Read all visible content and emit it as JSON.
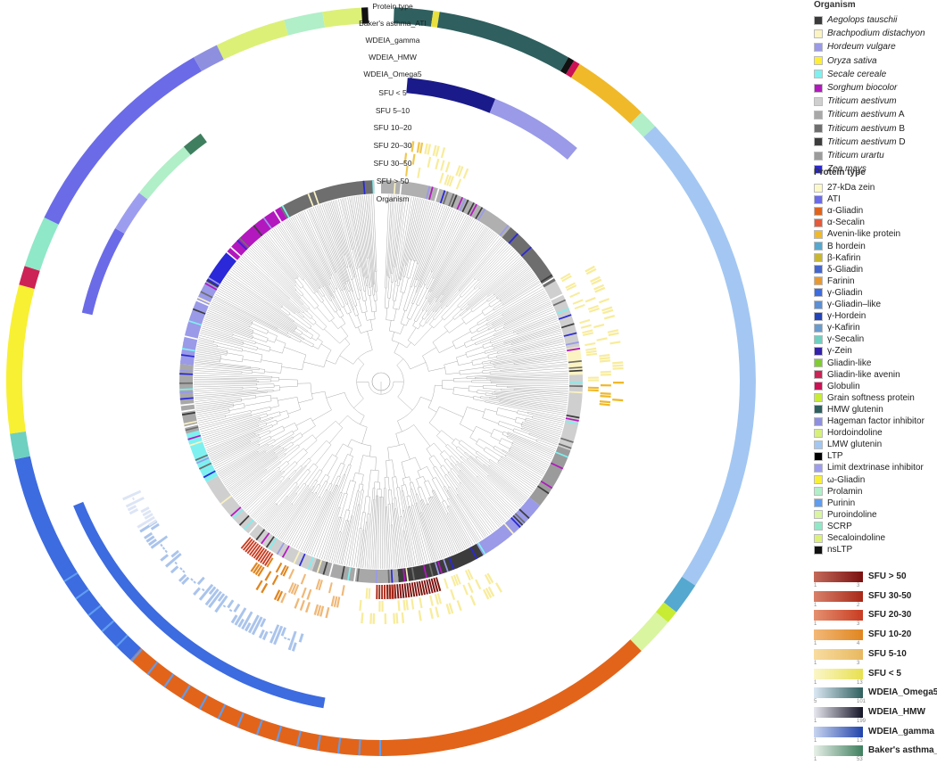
{
  "track_labels": [
    "Protein type",
    "Baker's asthma_ATI",
    "WDEIA_gamma",
    "WDEIA_HMW",
    "WDEIA_Omega5",
    "SFU < 5",
    "SFU 5–10",
    "SFU 10–20",
    "SFU 20–30",
    "SFU 30–50",
    "SFU > 50",
    "Organism"
  ],
  "legend": {
    "organism_title": "Organism",
    "organism": [
      {
        "name": "Aegolops tauschii",
        "suffix": "",
        "color": "#3a3a3a"
      },
      {
        "name": "Brachpodium distachyon",
        "suffix": "",
        "color": "#fbf3c2"
      },
      {
        "name": "Hordeum vulgare",
        "suffix": "",
        "color": "#9a9ae8"
      },
      {
        "name": "Oryza sativa",
        "suffix": "",
        "color": "#ffee33"
      },
      {
        "name": "Secale cereale",
        "suffix": "",
        "color": "#7ff0f0"
      },
      {
        "name": "Sorghum biocolor",
        "suffix": "",
        "color": "#b318bf"
      },
      {
        "name": "Triticum aestivum",
        "suffix": "",
        "color": "#cfcfcf"
      },
      {
        "name": "Triticum aestivum",
        "suffix": " A",
        "color": "#a8a8a8"
      },
      {
        "name": "Triticum aestivum",
        "suffix": " B",
        "color": "#6e6e6e"
      },
      {
        "name": "Triticum aestivum",
        "suffix": " D",
        "color": "#3c3c3c"
      },
      {
        "name": "Triticum urartu",
        "suffix": "",
        "color": "#9b9b9b"
      },
      {
        "name": "Zea mays",
        "suffix": "",
        "color": "#2a28d8"
      }
    ],
    "protein_title": "Protein type",
    "protein": [
      {
        "name": "27-kDa zein",
        "color": "#fcf9c8"
      },
      {
        "name": "ATI",
        "color": "#6b6be8"
      },
      {
        "name": "α-Gliadin",
        "color": "#e2641a"
      },
      {
        "name": "α-Secalin",
        "color": "#e55a3a"
      },
      {
        "name": "Avenin-like protein",
        "color": "#f0b929"
      },
      {
        "name": "B hordein",
        "color": "#55a8cf"
      },
      {
        "name": "β-Kafirin",
        "color": "#c9b730"
      },
      {
        "name": "δ-Gliadin",
        "color": "#4466cc"
      },
      {
        "name": "Farinin",
        "color": "#e89830"
      },
      {
        "name": "γ-Gliadin",
        "color": "#3d6be0"
      },
      {
        "name": "γ-Gliadin–like",
        "color": "#5b8fd6"
      },
      {
        "name": "γ-Hordein",
        "color": "#2244bb"
      },
      {
        "name": "γ-Kafirin",
        "color": "#6a9bcf"
      },
      {
        "name": "γ-Secalin",
        "color": "#6ed0c0"
      },
      {
        "name": "γ-Zein",
        "color": "#3322aa"
      },
      {
        "name": "Gliadin-like",
        "color": "#7fcc33"
      },
      {
        "name": "Gliadin-like avenin",
        "color": "#cc2255"
      },
      {
        "name": "Globulin",
        "color": "#cc1155"
      },
      {
        "name": "Grain softness protein",
        "color": "#c8ec33"
      },
      {
        "name": "HMW glutenin",
        "color": "#2f5f5f"
      },
      {
        "name": "Hageman factor inhibitor",
        "color": "#8f8fe0"
      },
      {
        "name": "Hordoindoline",
        "color": "#d6f07a"
      },
      {
        "name": "LMW glutenin",
        "color": "#a3c7f2"
      },
      {
        "name": "LTP",
        "color": "#000000"
      },
      {
        "name": "Limit dextrinase inhibitor",
        "color": "#9d9df0"
      },
      {
        "name": "ω-Gliadin",
        "color": "#f8f033"
      },
      {
        "name": "Prolamin",
        "color": "#b0efc8"
      },
      {
        "name": "Purinin",
        "color": "#5f9df0"
      },
      {
        "name": "Puroindoline",
        "color": "#d9f5a0"
      },
      {
        "name": "SCRP",
        "color": "#8fe8c8"
      },
      {
        "name": "Secaloindoline",
        "color": "#dcf078"
      },
      {
        "name": "nsLTP",
        "color": "#111111"
      }
    ],
    "gradients": [
      {
        "label": "SFU > 50",
        "from": "#c46a5a",
        "to": "#7a1010",
        "min": "1",
        "max": "3"
      },
      {
        "label": "SFU 30-50",
        "from": "#d8806a",
        "to": "#a82818",
        "min": "1",
        "max": "2"
      },
      {
        "label": "SFU 20-30",
        "from": "#e49070",
        "to": "#c83c22",
        "min": "1",
        "max": "3"
      },
      {
        "label": "SFU 10-20",
        "from": "#f2b878",
        "to": "#e08620",
        "min": "1",
        "max": "4"
      },
      {
        "label": "SFU 5-10",
        "from": "#f8dca0",
        "to": "#e8b860",
        "min": "1",
        "max": "3"
      },
      {
        "label": "SFU < 5",
        "from": "#fbf6c8",
        "to": "#e8e050",
        "min": "1",
        "max": "13"
      },
      {
        "label": "WDEIA_Omega5",
        "from": "#dce8f4",
        "to": "#2f5f5f",
        "min": "5",
        "max": "101"
      },
      {
        "label": "WDEIA_HMW",
        "from": "#e8e8f0",
        "to": "#141428",
        "min": "1",
        "max": "199"
      },
      {
        "label": "WDEIA_gamma",
        "from": "#c8d4f0",
        "to": "#2244aa",
        "min": "1",
        "max": "13"
      },
      {
        "label": "Baker's asthma_ATI",
        "from": "#e8f0e8",
        "to": "#3f7f5f",
        "min": "1",
        "max": "53"
      }
    ]
  },
  "rings": {
    "protein_outer": [
      {
        "from": 2,
        "to": 8,
        "color": "#2f5f5f"
      },
      {
        "from": 8,
        "to": 9,
        "color": "#e8e040"
      },
      {
        "from": 9,
        "to": 30,
        "color": "#2f5f5f"
      },
      {
        "from": 30,
        "to": 31,
        "color": "#111111"
      },
      {
        "from": 31,
        "to": 32,
        "color": "#cc1155"
      },
      {
        "from": 32,
        "to": 44,
        "color": "#f0b929"
      },
      {
        "from": 44,
        "to": 47,
        "color": "#b0efc8"
      },
      {
        "from": 47,
        "to": 123,
        "color": "#a3c7f2"
      },
      {
        "from": 123,
        "to": 128,
        "color": "#55a8cf"
      },
      {
        "from": 128,
        "to": 130,
        "color": "#c8ec33"
      },
      {
        "from": 130,
        "to": 136,
        "color": "#d9f5a0"
      },
      {
        "from": 136,
        "to": 222,
        "color": "#e2641a"
      },
      {
        "from": 222,
        "to": 228,
        "color": "#3d6be0"
      },
      {
        "from": 228,
        "to": 258,
        "color": "#3d6be0"
      },
      {
        "from": 258,
        "to": 262,
        "color": "#6ed0c0"
      },
      {
        "from": 262,
        "to": 285,
        "color": "#f8f033"
      },
      {
        "from": 285,
        "to": 288,
        "color": "#cc2255"
      },
      {
        "from": 288,
        "to": 296,
        "color": "#8fe8c8"
      },
      {
        "from": 296,
        "to": 330,
        "color": "#6b6be8"
      },
      {
        "from": 330,
        "to": 334,
        "color": "#8f8fe0"
      },
      {
        "from": 334,
        "to": 345,
        "color": "#dcf078"
      },
      {
        "from": 345,
        "to": 351,
        "color": "#b0efc8"
      },
      {
        "from": 351,
        "to": 357,
        "color": "#dcf078"
      },
      {
        "from": 357,
        "to": 358,
        "color": "#111111"
      }
    ],
    "asthma": [
      {
        "from": 283,
        "to": 300,
        "color": "#6b6be8"
      },
      {
        "from": 300,
        "to": 308,
        "color": "#9d9df0"
      },
      {
        "from": 308,
        "to": 320,
        "color": "#b0efc8"
      },
      {
        "from": 320,
        "to": 324,
        "color": "#3f7f5f"
      }
    ],
    "gamma": [
      {
        "from": 190,
        "to": 248,
        "color": "#3d6be0"
      }
    ],
    "hmw": [
      {
        "from": 5,
        "to": 22,
        "color": "#1a1a8a"
      },
      {
        "from": 22,
        "to": 40,
        "color": "#9a9ae8"
      }
    ],
    "omega5": [
      {
        "from": 197,
        "to": 238,
        "color": "#aac4ec"
      },
      {
        "from": 238,
        "to": 246,
        "color": "#dde5f5"
      }
    ],
    "sfu": [
      {
        "from": 6,
        "to": 10,
        "color": "#f0c850"
      },
      {
        "from": 10,
        "to": 22,
        "color": "#f8ec9c"
      },
      {
        "from": 60,
        "to": 90,
        "color": "#f8ec9c"
      },
      {
        "from": 90,
        "to": 96,
        "color": "#f0b929"
      },
      {
        "from": 150,
        "to": 185,
        "color": "#f8ec9c"
      },
      {
        "from": 190,
        "to": 205,
        "color": "#f0b878"
      },
      {
        "from": 205,
        "to": 215,
        "color": "#e08620"
      }
    ],
    "sfu_red": [
      {
        "from": 212,
        "to": 220,
        "color": "#c83c22"
      },
      {
        "from": 164,
        "to": 178,
        "color": "#7a1010"
      },
      {
        "from": 176,
        "to": 181,
        "color": "#a82818"
      }
    ],
    "organism": [
      {
        "from": 0,
        "to": 40,
        "color": "#b0b0b0"
      },
      {
        "from": 40,
        "to": 60,
        "color": "#6e6e6e"
      },
      {
        "from": 60,
        "to": 80,
        "color": "#cfcfcf"
      },
      {
        "from": 80,
        "to": 88,
        "color": "#fbf3c2"
      },
      {
        "from": 88,
        "to": 110,
        "color": "#cfcfcf"
      },
      {
        "from": 110,
        "to": 128,
        "color": "#9b9b9b"
      },
      {
        "from": 128,
        "to": 150,
        "color": "#9a9ae8"
      },
      {
        "from": 150,
        "to": 175,
        "color": "#3c3c3c"
      },
      {
        "from": 175,
        "to": 200,
        "color": "#a8a8a8"
      },
      {
        "from": 200,
        "to": 240,
        "color": "#cfcfcf"
      },
      {
        "from": 240,
        "to": 255,
        "color": "#7ff0f0"
      },
      {
        "from": 255,
        "to": 275,
        "color": "#a8a8a8"
      },
      {
        "from": 275,
        "to": 300,
        "color": "#9a9ae8"
      },
      {
        "from": 300,
        "to": 310,
        "color": "#2a28d8"
      },
      {
        "from": 310,
        "to": 330,
        "color": "#b318bf"
      },
      {
        "from": 330,
        "to": 358,
        "color": "#6e6e6e"
      }
    ]
  }
}
